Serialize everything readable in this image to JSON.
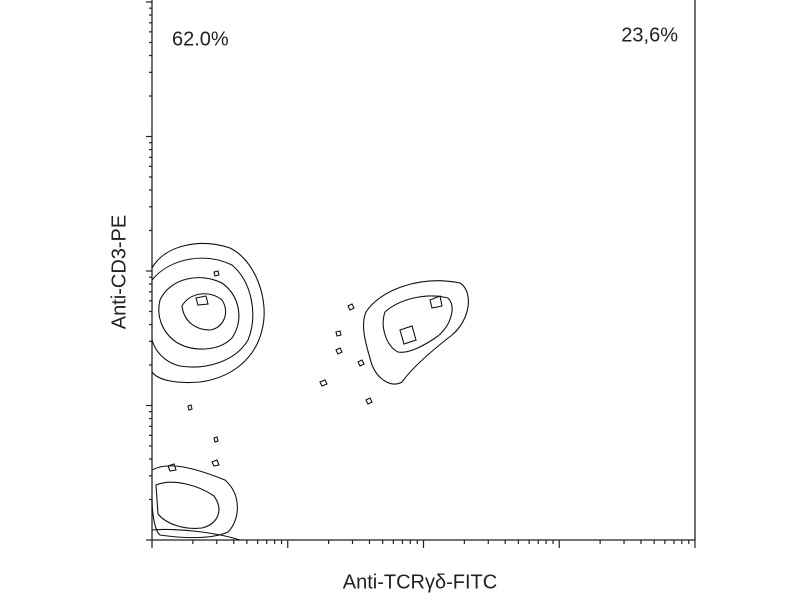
{
  "chart_data": {
    "type": "contour",
    "x_label": "Anti-TCRγδ-FITC",
    "y_label": "Anti-CD3-PE",
    "annotations": [
      "62.0%",
      "23,6%"
    ],
    "xscale": "log",
    "yscale": "log",
    "xlim": [
      1,
      10000
    ],
    "xticks": [
      1,
      10,
      100,
      1000,
      10000
    ],
    "ylim": [
      1,
      10000
    ],
    "yticks": [
      1,
      10,
      100,
      1000,
      10000
    ]
  }
}
